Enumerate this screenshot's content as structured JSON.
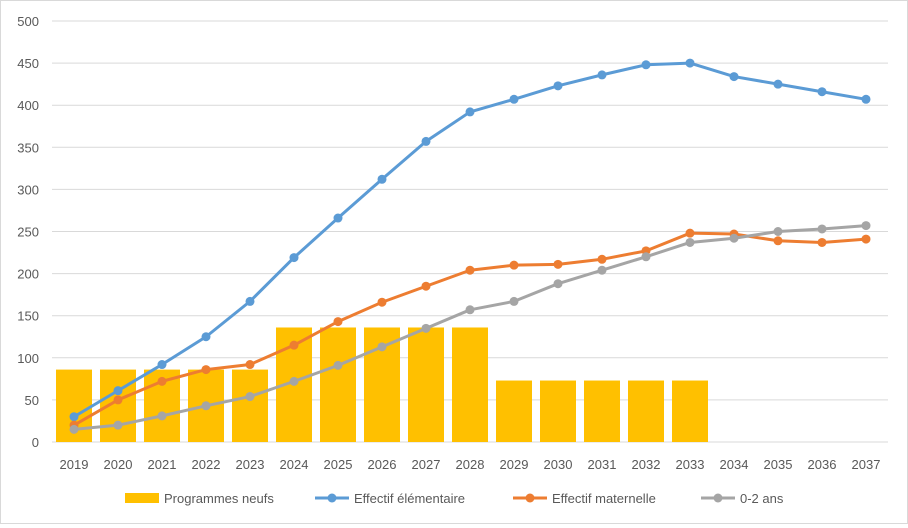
{
  "chart_data": {
    "type": "bar+line",
    "categories": [
      "2019",
      "2020",
      "2021",
      "2022",
      "2023",
      "2024",
      "2025",
      "2026",
      "2027",
      "2028",
      "2029",
      "2030",
      "2031",
      "2032",
      "2033",
      "2034",
      "2035",
      "2036",
      "2037"
    ],
    "ylim": [
      0,
      500
    ],
    "yticks": [
      "0",
      "50",
      "100",
      "150",
      "200",
      "250",
      "300",
      "350",
      "400",
      "450",
      "500"
    ],
    "grid": true,
    "legend": "bottom",
    "bars": {
      "name": "Programmes neufs",
      "color": "#FFC000",
      "values": [
        86,
        86,
        86,
        86,
        86,
        136,
        136,
        136,
        136,
        136,
        73,
        73,
        73,
        73,
        73,
        null,
        null,
        null,
        null
      ]
    },
    "series": [
      {
        "name": "Effectif élémentaire",
        "color": "#5B9BD5",
        "values": [
          30,
          61,
          92,
          125,
          167,
          219,
          266,
          312,
          357,
          392,
          407,
          423,
          436,
          448,
          450,
          434,
          425,
          416,
          407
        ]
      },
      {
        "name": "Effectif maternelle",
        "color": "#ED7D31",
        "values": [
          20,
          50,
          72,
          86,
          92,
          115,
          143,
          166,
          185,
          204,
          210,
          211,
          217,
          227,
          248,
          247,
          239,
          237,
          241
        ]
      },
      {
        "name": "0-2 ans",
        "color": "#A5A5A5",
        "values": [
          15,
          20,
          31,
          43,
          54,
          72,
          91,
          113,
          135,
          157,
          167,
          188,
          204,
          220,
          237,
          242,
          250,
          253,
          257
        ]
      }
    ]
  }
}
